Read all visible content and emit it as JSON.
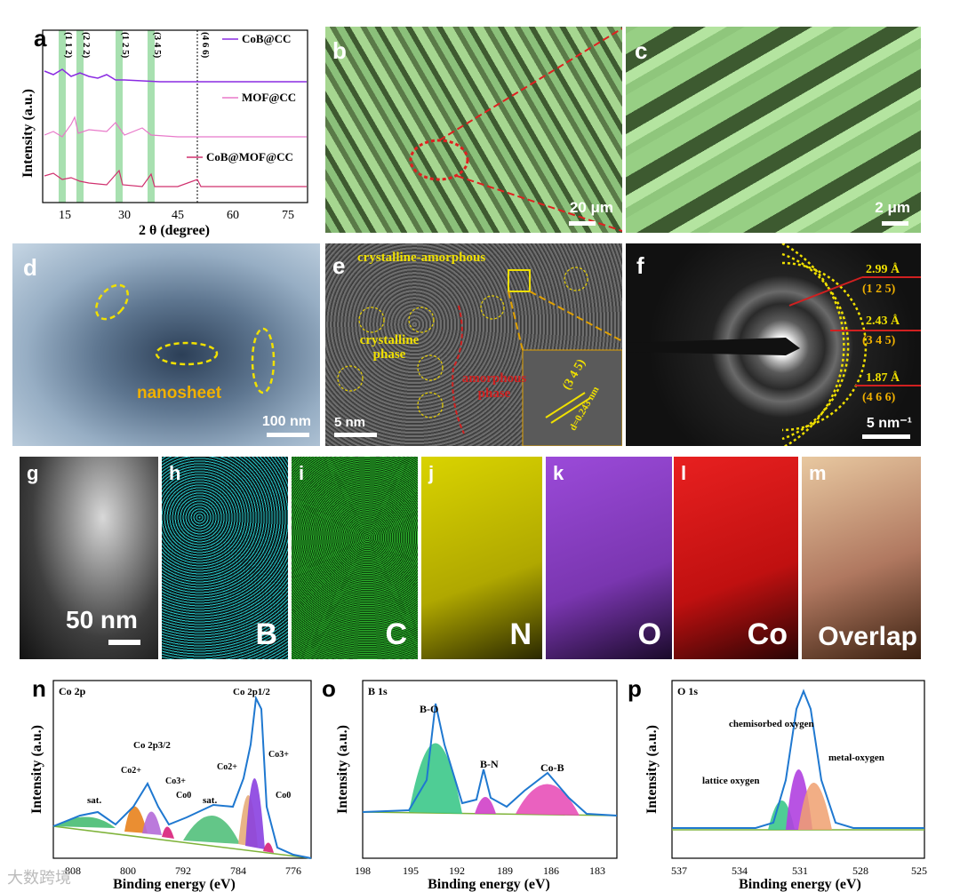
{
  "panel_a": {
    "label": "a",
    "ylabel": "Intensity (a.u.)",
    "xlabel": "2 θ (degree)",
    "xticks": [
      "15",
      "30",
      "45",
      "60",
      "75"
    ],
    "peak_labels": [
      "(1 1 2)",
      "(2 2 2)",
      "(1 2 5)",
      "(3 4 5)",
      "(4 6 6)"
    ],
    "legend": [
      "CoB@CC",
      "MOF@CC",
      "CoB@MOF@CC"
    ],
    "colors": {
      "cob": "#8a2be2",
      "mof": "#e879c9",
      "cobmof": "#d0306e",
      "band": "#a8e0b0"
    }
  },
  "panel_b": {
    "label": "b",
    "scale": "20 μm"
  },
  "panel_c": {
    "label": "c",
    "scale": "2 μm"
  },
  "panel_d": {
    "label": "d",
    "annotation": "nanosheet",
    "scale": "100 nm"
  },
  "panel_e": {
    "label": "e",
    "title": "crystalline-amorphous",
    "crystalline": "crystalline phase",
    "amorphous": "amorphous phase",
    "lattice": "(3 4 5)",
    "dspacing": "d=0.243 nm",
    "scale": "5 nm"
  },
  "panel_f": {
    "label": "f",
    "rings": [
      {
        "d": "2.99 Å",
        "hkl": "(1 2 5)"
      },
      {
        "d": "2.43 Å",
        "hkl": "(3 4 5)"
      },
      {
        "d": "1.87 Å",
        "hkl": "(4 6 6)"
      }
    ],
    "scale": "5 nm⁻¹"
  },
  "panel_g": {
    "label": "g",
    "scale": "50 nm"
  },
  "maps": [
    {
      "label": "h",
      "element": "B",
      "color": "#27c4c8"
    },
    {
      "label": "i",
      "element": "C",
      "color": "#2db52d"
    },
    {
      "label": "j",
      "element": "N",
      "color": "#d9d300"
    },
    {
      "label": "k",
      "element": "O",
      "color": "#9b4ad9"
    },
    {
      "label": "l",
      "element": "Co",
      "color": "#d81818"
    },
    {
      "label": "m",
      "element": "Overlap",
      "color": "#c8a880"
    }
  ],
  "panel_n": {
    "label": "n",
    "title": "Co 2p",
    "ylabel": "Intensity (a.u.)",
    "xlabel": "Binding energy (eV)",
    "xticks": [
      "808",
      "800",
      "792",
      "784",
      "776"
    ],
    "annotations": [
      "sat.",
      "Co 2p3/2",
      "Co2+",
      "Co3+",
      "Co0",
      "sat.",
      "Co2+",
      "Co 2p1/2",
      "Co3+",
      "Co0"
    ]
  },
  "panel_o": {
    "label": "o",
    "title": "B 1s",
    "ylabel": "Intensity (a.u.)",
    "xlabel": "Binding energy (eV)",
    "xticks": [
      "198",
      "195",
      "192",
      "189",
      "186",
      "183"
    ],
    "annotations": [
      "B-O",
      "B-N",
      "Co-B"
    ]
  },
  "panel_p": {
    "label": "p",
    "title": "O 1s",
    "ylabel": "Intensity (a.u.)",
    "xlabel": "Binding energy (eV)",
    "xticks": [
      "537",
      "534",
      "531",
      "528",
      "525"
    ],
    "annotations": [
      "chemisorbed oxygen",
      "metal-oxygen",
      "lattice oxygen"
    ]
  },
  "watermark": "大数跨境"
}
